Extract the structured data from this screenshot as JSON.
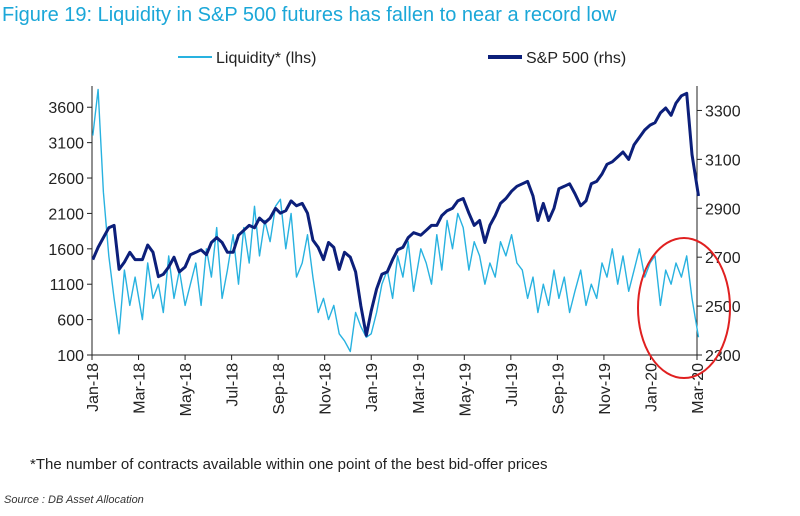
{
  "figure": {
    "title": "Figure 19: Liquidity in S&P 500 futures has fallen to near a record low",
    "footnote": "*The number of contracts available within one point of the best bid-offer prices",
    "source": "Source : DB Asset Allocation"
  },
  "colors": {
    "title": "#1ba7d8",
    "liquidity": "#28b2e0",
    "sp500": "#0c1f7a",
    "highlight_ellipse": "#e02020"
  },
  "chart_data": {
    "type": "line",
    "x_start": "2018-01",
    "x_end": "2020-03",
    "x_tick_labels": [
      "Jan-18",
      "Mar-18",
      "May-18",
      "Jul-18",
      "Sep-18",
      "Nov-18",
      "Jan-19",
      "Mar-19",
      "May-19",
      "Jul-19",
      "Sep-19",
      "Nov-19",
      "Jan-20",
      "Mar-20"
    ],
    "y_left": {
      "label": "Liquidity* (lhs)",
      "ylim": [
        100,
        3900
      ],
      "ticks": [
        100,
        600,
        1100,
        1600,
        2100,
        2600,
        3100,
        3600
      ]
    },
    "y_right": {
      "label": "S&P 500 (rhs)",
      "ylim": [
        2300,
        3400
      ],
      "ticks": [
        2300,
        2500,
        2700,
        2900,
        3100,
        3300
      ]
    },
    "legend": [
      "Liquidity* (lhs)",
      "S&P 500 (rhs)"
    ],
    "annotation": "red ellipse highlighting Feb-Mar 2020",
    "series": [
      {
        "name": "Liquidity* (lhs)",
        "axis": "left",
        "x": [
          "2018-01-02",
          "2018-01-09",
          "2018-01-16",
          "2018-01-23",
          "2018-01-30",
          "2018-02-06",
          "2018-02-13",
          "2018-02-20",
          "2018-02-27",
          "2018-03-06",
          "2018-03-13",
          "2018-03-20",
          "2018-03-27",
          "2018-04-03",
          "2018-04-10",
          "2018-04-17",
          "2018-04-24",
          "2018-05-01",
          "2018-05-08",
          "2018-05-15",
          "2018-05-22",
          "2018-05-29",
          "2018-06-05",
          "2018-06-12",
          "2018-06-19",
          "2018-06-26",
          "2018-07-03",
          "2018-07-10",
          "2018-07-17",
          "2018-07-24",
          "2018-07-31",
          "2018-08-07",
          "2018-08-14",
          "2018-08-21",
          "2018-08-28",
          "2018-09-04",
          "2018-09-11",
          "2018-09-18",
          "2018-09-25",
          "2018-10-02",
          "2018-10-09",
          "2018-10-16",
          "2018-10-23",
          "2018-10-30",
          "2018-11-06",
          "2018-11-13",
          "2018-11-20",
          "2018-11-27",
          "2018-12-04",
          "2018-12-11",
          "2018-12-18",
          "2018-12-25",
          "2019-01-01",
          "2019-01-08",
          "2019-01-15",
          "2019-01-22",
          "2019-01-29",
          "2019-02-05",
          "2019-02-12",
          "2019-02-19",
          "2019-02-26",
          "2019-03-05",
          "2019-03-12",
          "2019-03-19",
          "2019-03-26",
          "2019-04-02",
          "2019-04-09",
          "2019-04-16",
          "2019-04-23",
          "2019-04-30",
          "2019-05-07",
          "2019-05-14",
          "2019-05-21",
          "2019-05-28",
          "2019-06-04",
          "2019-06-11",
          "2019-06-18",
          "2019-06-25",
          "2019-07-02",
          "2019-07-09",
          "2019-07-16",
          "2019-07-23",
          "2019-07-30",
          "2019-08-06",
          "2019-08-13",
          "2019-08-20",
          "2019-08-27",
          "2019-09-03",
          "2019-09-10",
          "2019-09-17",
          "2019-09-24",
          "2019-10-01",
          "2019-10-08",
          "2019-10-15",
          "2019-10-22",
          "2019-10-29",
          "2019-11-05",
          "2019-11-12",
          "2019-11-19",
          "2019-11-26",
          "2019-12-03",
          "2019-12-10",
          "2019-12-17",
          "2019-12-24",
          "2019-12-31",
          "2020-01-07",
          "2020-01-14",
          "2020-01-21",
          "2020-01-28",
          "2020-02-04",
          "2020-02-11",
          "2020-02-18",
          "2020-02-25",
          "2020-03-03"
        ],
        "values": [
          3200,
          3850,
          2400,
          1500,
          900,
          400,
          1300,
          800,
          1200,
          600,
          1400,
          900,
          1100,
          700,
          1500,
          900,
          1300,
          800,
          1100,
          1400,
          800,
          1600,
          1200,
          1900,
          900,
          1300,
          1800,
          1100,
          1900,
          1400,
          2200,
          1500,
          2000,
          1700,
          2200,
          2300,
          1600,
          2100,
          1200,
          1400,
          1800,
          1200,
          700,
          900,
          600,
          800,
          400,
          300,
          150,
          700,
          500,
          350,
          400,
          700,
          1100,
          1300,
          900,
          1500,
          1200,
          1700,
          1000,
          1600,
          1400,
          1100,
          1800,
          1300,
          2000,
          1600,
          2100,
          1900,
          1300,
          1700,
          1500,
          1100,
          1400,
          1200,
          1700,
          1500,
          1800,
          1400,
          1300,
          900,
          1200,
          700,
          1100,
          800,
          1300,
          900,
          1200,
          700,
          1000,
          1300,
          800,
          1100,
          900,
          1400,
          1200,
          1600,
          1100,
          1500,
          1000,
          1300,
          1600,
          1200,
          1400,
          1500,
          800,
          1300,
          1100,
          1400,
          1200,
          1500,
          900,
          350
        ]
      },
      {
        "name": "S&P 500 (rhs)",
        "axis": "right",
        "x": [
          "2018-01-02",
          "2018-01-09",
          "2018-01-16",
          "2018-01-23",
          "2018-01-30",
          "2018-02-06",
          "2018-02-13",
          "2018-02-20",
          "2018-02-27",
          "2018-03-06",
          "2018-03-13",
          "2018-03-20",
          "2018-03-27",
          "2018-04-03",
          "2018-04-10",
          "2018-04-17",
          "2018-04-24",
          "2018-05-01",
          "2018-05-08",
          "2018-05-15",
          "2018-05-22",
          "2018-05-29",
          "2018-06-05",
          "2018-06-12",
          "2018-06-19",
          "2018-06-26",
          "2018-07-03",
          "2018-07-10",
          "2018-07-17",
          "2018-07-24",
          "2018-07-31",
          "2018-08-07",
          "2018-08-14",
          "2018-08-21",
          "2018-08-28",
          "2018-09-04",
          "2018-09-11",
          "2018-09-18",
          "2018-09-25",
          "2018-10-02",
          "2018-10-09",
          "2018-10-16",
          "2018-10-23",
          "2018-10-30",
          "2018-11-06",
          "2018-11-13",
          "2018-11-20",
          "2018-11-27",
          "2018-12-04",
          "2018-12-11",
          "2018-12-18",
          "2018-12-25",
          "2019-01-01",
          "2019-01-08",
          "2019-01-15",
          "2019-01-22",
          "2019-01-29",
          "2019-02-05",
          "2019-02-12",
          "2019-02-19",
          "2019-02-26",
          "2019-03-05",
          "2019-03-12",
          "2019-03-19",
          "2019-03-26",
          "2019-04-02",
          "2019-04-09",
          "2019-04-16",
          "2019-04-23",
          "2019-04-30",
          "2019-05-07",
          "2019-05-14",
          "2019-05-21",
          "2019-05-28",
          "2019-06-04",
          "2019-06-11",
          "2019-06-18",
          "2019-06-25",
          "2019-07-02",
          "2019-07-09",
          "2019-07-16",
          "2019-07-23",
          "2019-07-30",
          "2019-08-06",
          "2019-08-13",
          "2019-08-20",
          "2019-08-27",
          "2019-09-03",
          "2019-09-10",
          "2019-09-17",
          "2019-09-24",
          "2019-10-01",
          "2019-10-08",
          "2019-10-15",
          "2019-10-22",
          "2019-10-29",
          "2019-11-05",
          "2019-11-12",
          "2019-11-19",
          "2019-11-26",
          "2019-12-03",
          "2019-12-10",
          "2019-12-17",
          "2019-12-24",
          "2019-12-31",
          "2020-01-07",
          "2020-01-14",
          "2020-01-21",
          "2020-01-28",
          "2020-02-04",
          "2020-02-11",
          "2020-02-18",
          "2020-02-25",
          "2020-03-03"
        ],
        "values": [
          2690,
          2740,
          2780,
          2820,
          2830,
          2650,
          2680,
          2720,
          2690,
          2690,
          2750,
          2720,
          2620,
          2630,
          2660,
          2700,
          2640,
          2660,
          2710,
          2720,
          2730,
          2710,
          2760,
          2780,
          2760,
          2720,
          2720,
          2790,
          2810,
          2830,
          2820,
          2860,
          2840,
          2860,
          2900,
          2880,
          2890,
          2930,
          2910,
          2920,
          2880,
          2770,
          2740,
          2690,
          2760,
          2740,
          2650,
          2720,
          2700,
          2640,
          2500,
          2380,
          2480,
          2570,
          2630,
          2640,
          2690,
          2730,
          2740,
          2780,
          2800,
          2790,
          2810,
          2830,
          2830,
          2870,
          2890,
          2900,
          2930,
          2940,
          2880,
          2830,
          2850,
          2760,
          2830,
          2870,
          2920,
          2940,
          2970,
          2990,
          3000,
          3010,
          2950,
          2850,
          2920,
          2850,
          2900,
          2980,
          2990,
          3000,
          2960,
          2910,
          2930,
          3000,
          3010,
          3040,
          3080,
          3090,
          3110,
          3130,
          3100,
          3160,
          3190,
          3220,
          3240,
          3250,
          3290,
          3310,
          3280,
          3330,
          3360,
          3370,
          3120,
          2950
        ]
      }
    ]
  }
}
